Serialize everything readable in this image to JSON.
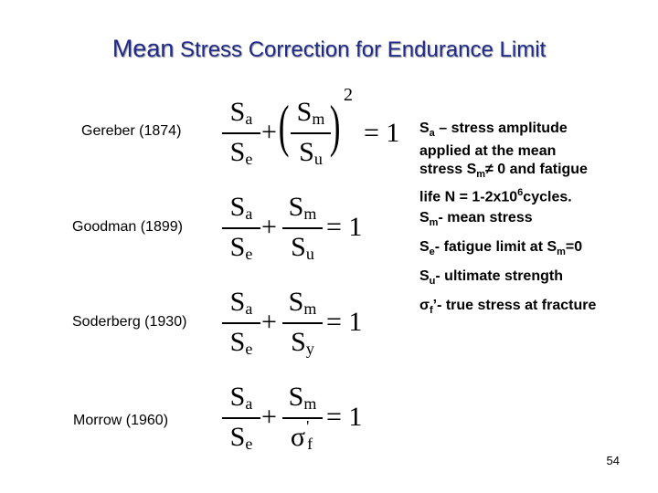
{
  "slide": {
    "title_word1": "Mean",
    "title_rest": " Stress Correction for Endurance Limit",
    "page_number": "54"
  },
  "criteria": [
    {
      "label": "Gereber  (1874)"
    },
    {
      "label": "Goodman (1899)"
    },
    {
      "label": "Soderberg (1930)"
    },
    {
      "label": "Morrow (1960)"
    }
  ],
  "symbols": {
    "S": "S",
    "a": "a",
    "e": "e",
    "m": "m",
    "u": "u",
    "y": "y",
    "sigma": "σ",
    "f": "f",
    "prime": "'",
    "plus": "+",
    "equals": "= 1",
    "exponent": "2",
    "lparen": "(",
    "rparen": ")"
  },
  "notes": {
    "n1_S": "S",
    "n1_sub": "a",
    "n1_text1": " – stress amplitude",
    "n1_text2": "applied at the mean",
    "n1_text3a": "stress S",
    "n1_text3_sub": "m",
    "n1_text3b": "≠ 0 and fatigue",
    "n1_text4a": "life N = 1-2x10",
    "n1_text4_sup": "6",
    "n1_text4b": "cycles.",
    "n2_S": "S",
    "n2_sub": "m",
    "n2_text": "- mean stress",
    "n3_S": "S",
    "n3_sub": "e",
    "n3_text": "- fatigue limit at S",
    "n3_sub2": "m",
    "n3_text2": "=0",
    "n4_S": "S",
    "n4_sub": "u",
    "n4_text": "- ultimate strength",
    "n5_sigma": "σ",
    "n5_sub": "f",
    "n5_prime": "’",
    "n5_text": "- true stress at fracture"
  }
}
